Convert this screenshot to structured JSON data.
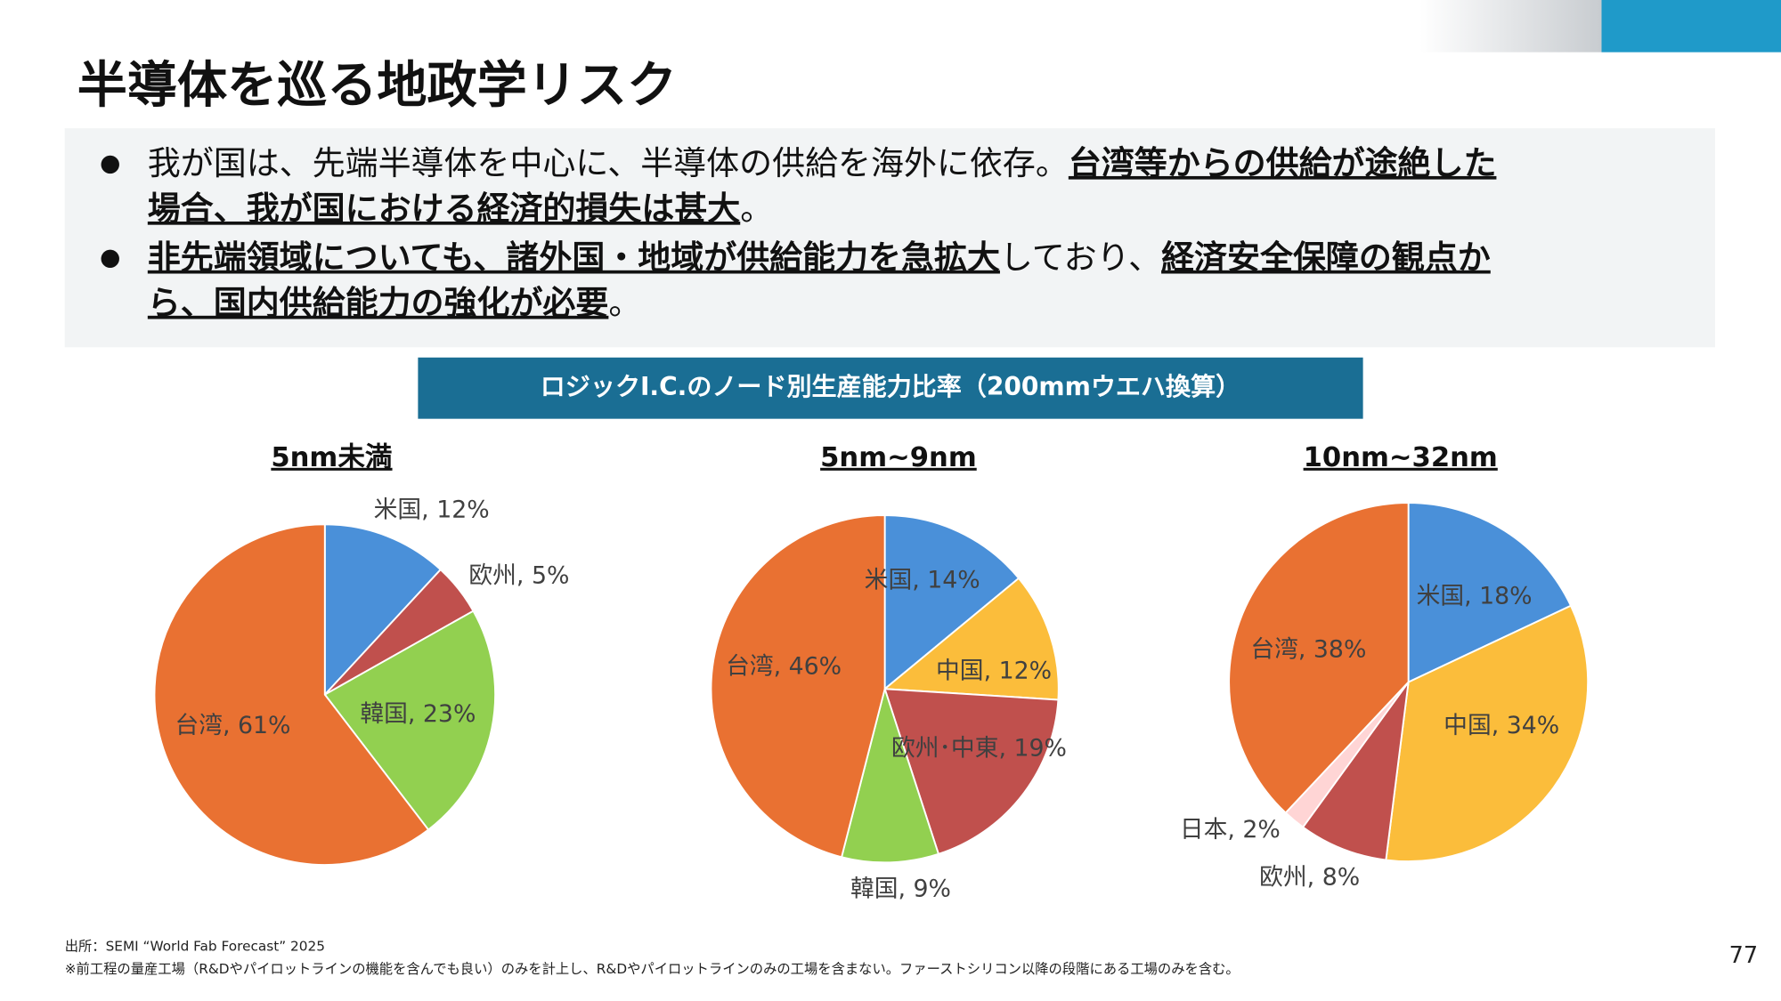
{
  "header": {
    "title": "半導体を巡る地政学リスク",
    "page_number": "77"
  },
  "bullets": [
    [
      [
        {
          "text": "我が国は、先端半導体を中心に、半導体の供給を海外に依存。",
          "bold": false
        },
        {
          "text": "台湾等からの供給が途絶した",
          "bold": true
        }
      ],
      [
        {
          "text": "場合、我が国における経済的損失は甚大",
          "bold": true
        },
        {
          "text": "。",
          "bold": false
        }
      ]
    ],
    [
      [
        {
          "text": "非先端領域についても、諸外国・地域が供給能力を急拡大",
          "bold": true
        },
        {
          "text": "しており、",
          "bold": false
        },
        {
          "text": "経済安全保障の観点か",
          "bold": true
        }
      ],
      [
        {
          "text": "ら、国内供給能力の強化が必要",
          "bold": true
        },
        {
          "text": "。",
          "bold": false
        }
      ]
    ]
  ],
  "banner": "ロジックI.C.のノード別生産能力比率（200mmウエハ換算）",
  "chart_data": [
    {
      "type": "pie",
      "title": "5nm未満",
      "values": [
        12,
        5,
        23,
        61
      ],
      "value_labels": [
        "米国, 12%",
        "欧州, 5%",
        "韓国, 23%",
        "台湾, 61%"
      ],
      "colors": [
        "#4a90d9",
        "#c0504d",
        "#92d050",
        "#e97132"
      ]
    },
    {
      "type": "pie",
      "title": "5nm~9nm",
      "values": [
        14,
        12,
        19,
        9,
        46
      ],
      "value_labels": [
        "米国, 14%",
        "中国, 12%",
        "欧州･中東, 19%",
        "韓国, 9%",
        "台湾, 46%"
      ],
      "colors": [
        "#4a90d9",
        "#fbbd3b",
        "#c0504d",
        "#92d050",
        "#e97132"
      ]
    },
    {
      "type": "pie",
      "title": "10nm~32nm",
      "values": [
        18,
        34,
        8,
        2,
        38
      ],
      "value_labels": [
        "米国, 18%",
        "中国, 34%",
        "欧州, 8%",
        "日本, 2%",
        "台湾, 38%"
      ],
      "colors": [
        "#4a90d9",
        "#fbbd3b",
        "#c0504d",
        "#ffd5d5",
        "#e97132"
      ]
    }
  ],
  "footnotes": [
    "出所：SEMI “World Fab Forecast” 2025",
    "※前工程の量産工場（R&Dやパイロットラインの機能を含んでも良い）のみを計上し、R&Dやパイロットラインのみの工場を含まない。ファーストシリコン以降の段階にある工場のみを含む。"
  ]
}
